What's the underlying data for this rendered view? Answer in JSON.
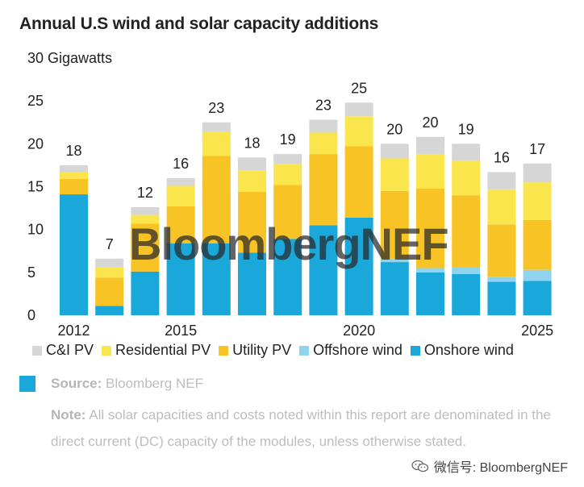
{
  "title": "Annual U.S wind and solar capacity additions",
  "chart_data": {
    "type": "bar",
    "stacked": true,
    "title": "Annual U.S wind and solar capacity additions",
    "ylabel": "Gigawatts",
    "ylim": [
      0,
      30
    ],
    "yticks": [
      0,
      5,
      10,
      15,
      20,
      25,
      30
    ],
    "top_tick_label": "30 Gigawatts",
    "categories": [
      "2012",
      "2013",
      "2014",
      "2015",
      "2016",
      "2017",
      "2018",
      "2019",
      "2020",
      "2021",
      "2022",
      "2023",
      "2024",
      "2025"
    ],
    "xtick_labels": [
      "2012",
      "",
      "",
      "2015",
      "",
      "",
      "",
      "",
      "2020",
      "",
      "",
      "",
      "",
      "2025"
    ],
    "totals": [
      "18",
      "7",
      "12",
      "16",
      "23",
      "18",
      "19",
      "23",
      "25",
      "20",
      "20",
      "19",
      "16",
      "17"
    ],
    "series": [
      {
        "name": "Onshore wind",
        "color": "#1aa7d9",
        "values": [
          14.1,
          1.1,
          5.1,
          8.4,
          8.4,
          7.3,
          8.9,
          10.5,
          11.4,
          6.2,
          5.0,
          4.8,
          3.9,
          4.0
        ]
      },
      {
        "name": "Offshore wind",
        "color": "#8fd3ef",
        "values": [
          0,
          0,
          0,
          0,
          0,
          0,
          0,
          0,
          0,
          0.4,
          0.5,
          0.8,
          0.6,
          1.3
        ]
      },
      {
        "name": "Utility PV",
        "color": "#f7c325",
        "values": [
          1.8,
          3.3,
          5.6,
          4.3,
          10.2,
          7.1,
          6.3,
          8.3,
          8.3,
          7.9,
          9.3,
          8.4,
          6.1,
          5.8
        ]
      },
      {
        "name": "Residential PV",
        "color": "#fbe54c",
        "values": [
          0.8,
          1.2,
          1.0,
          2.4,
          2.8,
          2.5,
          2.4,
          2.5,
          3.5,
          3.8,
          4.0,
          4.0,
          4.1,
          4.4
        ]
      },
      {
        "name": "C&I PV",
        "color": "#d6d6d6",
        "values": [
          0.8,
          1.0,
          0.9,
          0.9,
          1.1,
          1.5,
          1.2,
          1.5,
          1.6,
          1.7,
          2.0,
          2.0,
          2.0,
          2.2
        ]
      }
    ],
    "legend_order": [
      "C&I PV",
      "Residential PV",
      "Utility PV",
      "Offshore wind",
      "Onshore wind"
    ],
    "legend_position": "bottom",
    "grid": false
  },
  "legend": [
    {
      "label": "C&I PV",
      "color": "#d6d6d6"
    },
    {
      "label": "Residential PV",
      "color": "#fbe54c"
    },
    {
      "label": "Utility PV",
      "color": "#f7c325"
    },
    {
      "label": "Offshore wind",
      "color": "#8fd3ef"
    },
    {
      "label": "Onshore wind",
      "color": "#1aa7d9"
    }
  ],
  "watermark": "BloombergNEF",
  "source": {
    "label": "Source:",
    "text": "Bloomberg NEF",
    "box_color": "#1aa7d9"
  },
  "note": {
    "label": "Note:",
    "text": "All solar capacities and costs noted within this report are denominated in the direct current (DC) capacity of the modules, unless otherwise stated."
  },
  "wechat": {
    "text": "微信号: BloombergNEF",
    "icon": "wechat-icon"
  }
}
